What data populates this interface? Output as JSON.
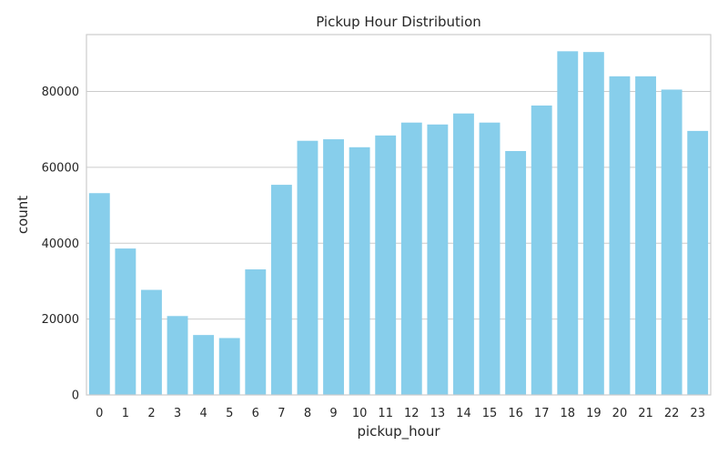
{
  "chart_data": {
    "type": "bar",
    "title": "Pickup Hour Distribution",
    "xlabel": "pickup_hour",
    "ylabel": "count",
    "categories": [
      "0",
      "1",
      "2",
      "3",
      "4",
      "5",
      "6",
      "7",
      "8",
      "9",
      "10",
      "11",
      "12",
      "13",
      "14",
      "15",
      "16",
      "17",
      "18",
      "19",
      "20",
      "21",
      "22",
      "23"
    ],
    "values": [
      53200,
      38600,
      27700,
      20800,
      15800,
      15000,
      33100,
      55400,
      67000,
      67400,
      65300,
      68400,
      71800,
      71300,
      74200,
      71800,
      64300,
      76300,
      90600,
      90400,
      84000,
      84000,
      80500,
      69600
    ],
    "yticks": [
      0,
      20000,
      40000,
      60000,
      80000
    ],
    "ytick_labels": [
      "0",
      "20000",
      "40000",
      "60000",
      "80000"
    ],
    "ylim": [
      0,
      95000
    ],
    "grid": "horizontal",
    "bar_color": "#87CEEB",
    "grid_color": "#cccccc",
    "frame_color": "#cccccc",
    "text_color": "#262626"
  }
}
